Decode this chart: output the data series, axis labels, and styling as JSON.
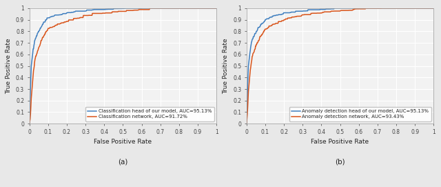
{
  "subplot_a": {
    "title": "(a)",
    "xlabel": "False Positive Rate",
    "ylabel": "True Positive Rate",
    "line1_label": "Classification head of our model, AUC=95.13%",
    "line1_color": "#3E7EBF",
    "line2_label": "Classification network, AUC=91.72%",
    "line2_color": "#D95319",
    "xlim": [
      0,
      1
    ],
    "ylim": [
      0,
      1
    ]
  },
  "subplot_b": {
    "title": "(b)",
    "xlabel": "False Positive Rate",
    "ylabel": "True Positive Rate",
    "line1_label": "Anomaly detection head of our model, AUC=95.13%",
    "line1_color": "#3E7EBF",
    "line2_label": "Anomaly detection network, AUC=93.43%",
    "line2_color": "#D95319",
    "xlim": [
      0,
      1
    ],
    "ylim": [
      0,
      1
    ]
  },
  "tick_labels": [
    "0",
    "0.1",
    "0.2",
    "0.3",
    "0.4",
    "0.5",
    "0.6",
    "0.7",
    "0.8",
    "0.9",
    "1"
  ],
  "tick_values": [
    0.0,
    0.1,
    0.2,
    0.3,
    0.4,
    0.5,
    0.6,
    0.7,
    0.8,
    0.9,
    1.0
  ],
  "background_color": "#f2f2f2",
  "grid_color": "#ffffff",
  "line_width": 1.1,
  "legend_fontsize": 5.0,
  "axis_fontsize": 6.5,
  "tick_fontsize": 5.5,
  "title_fontsize": 7.5,
  "fig_facecolor": "#e8e8e8"
}
